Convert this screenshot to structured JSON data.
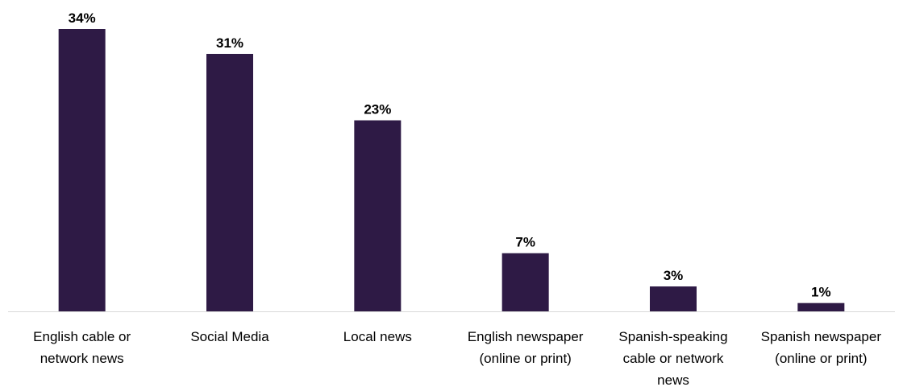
{
  "chart_data": {
    "type": "bar",
    "title": "",
    "xlabel": "",
    "ylabel": "",
    "categories": [
      [
        "English cable or",
        "network news"
      ],
      [
        "Social Media"
      ],
      [
        "Local news"
      ],
      [
        "English newspaper",
        "(online or print)"
      ],
      [
        "Spanish-speaking",
        "cable or network",
        "news"
      ],
      [
        "Spanish newspaper",
        "(online or print)"
      ]
    ],
    "values": [
      34,
      31,
      23,
      7,
      3,
      1
    ],
    "value_labels": [
      "34%",
      "31%",
      "23%",
      "7%",
      "3%",
      "1%"
    ],
    "ylim": [
      0,
      34
    ],
    "grid": false,
    "legend": "none",
    "bar_color": "#2e1a45",
    "axis_color": "#d9d9d9"
  }
}
